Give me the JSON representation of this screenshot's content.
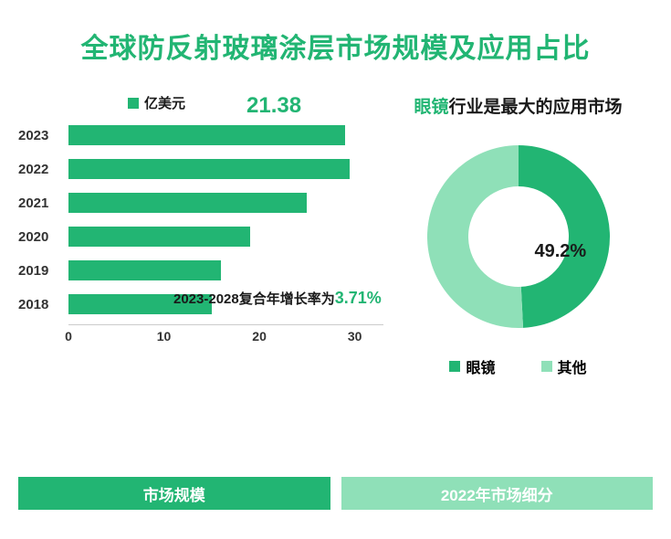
{
  "title": {
    "text": "全球防反射玻璃涂层市场规模及应用占比",
    "color": "#22b573",
    "fontsize": 30
  },
  "bar_chart": {
    "type": "bar-horizontal",
    "legend_label": "亿美元",
    "legend_color": "#22b573",
    "legend_fontsize": 15,
    "callout_value": "21.38",
    "callout_color": "#22b573",
    "callout_fontsize": 24,
    "categories": [
      "2023",
      "2022",
      "2021",
      "2020",
      "2019",
      "2018"
    ],
    "values": [
      29,
      29.5,
      25,
      19,
      16,
      15
    ],
    "bar_color": "#22b573",
    "ylabel_color": "#333333",
    "xlim": [
      0,
      33
    ],
    "xticks": [
      0,
      10,
      20,
      30
    ],
    "xtick_color": "#333333",
    "cagr_text_prefix": "2023-2028复合年增长率为",
    "cagr_value": "3.71%",
    "cagr_prefix_color": "#1a1a1a",
    "cagr_value_color": "#22b573",
    "cagr_value_fontsize": 18
  },
  "right": {
    "title_prefix": "眼镜",
    "title_suffix": "行业是最大的应用市场",
    "title_prefix_color": "#22b573",
    "title_suffix_color": "#1a1a1a",
    "title_fontsize": 19
  },
  "donut": {
    "type": "donut",
    "slices": [
      {
        "name": "眼镜",
        "value": 49.2,
        "color": "#22b573"
      },
      {
        "name": "其他",
        "value": 50.8,
        "color": "#8fe0b8"
      }
    ],
    "inner_radius_pct": 55,
    "label_text": "49.2%",
    "label_color": "#1a1a1a",
    "legend_fontsize": 16
  },
  "footer": {
    "left_label": "市场规模",
    "right_label": "2022年市场细分",
    "left_bg": "#22b573",
    "right_bg": "#8fe0b8"
  }
}
